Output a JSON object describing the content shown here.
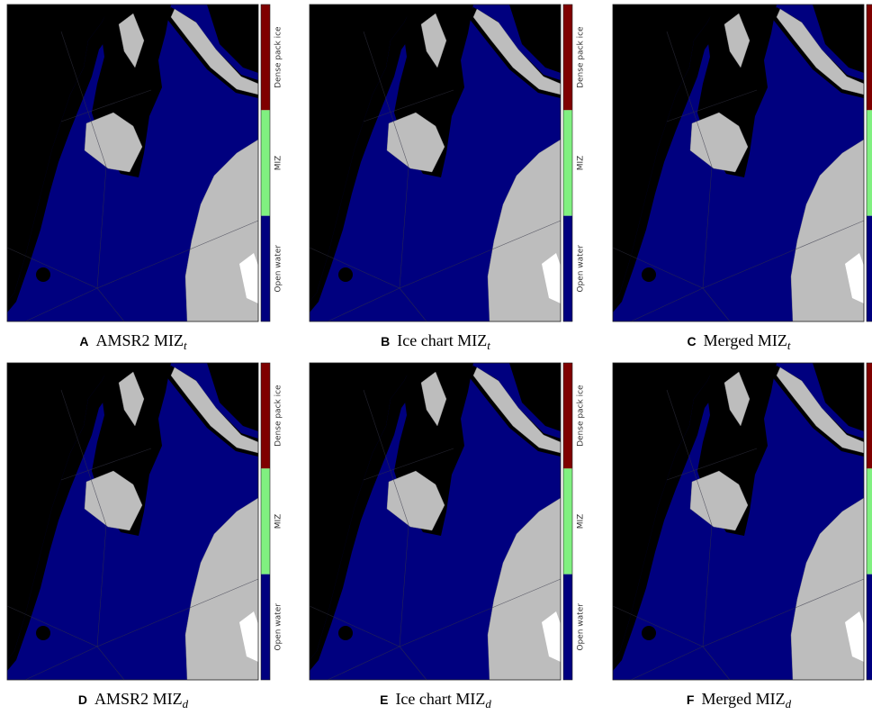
{
  "colorbar": {
    "labels": [
      "Dense pack ice",
      "MIZ",
      "Open water"
    ]
  },
  "panels": [
    {
      "letter": "A",
      "caption": "AMSR2 MIZ",
      "subscript": "t"
    },
    {
      "letter": "B",
      "caption": "Ice chart MIZ",
      "subscript": "t"
    },
    {
      "letter": "C",
      "caption": "Merged MIZ",
      "subscript": "t"
    },
    {
      "letter": "D",
      "caption": "AMSR2 MIZ",
      "subscript": "d"
    },
    {
      "letter": "E",
      "caption": "Ice chart MIZ",
      "subscript": "d"
    },
    {
      "letter": "F",
      "caption": "Merged MIZ",
      "subscript": "d"
    }
  ]
}
